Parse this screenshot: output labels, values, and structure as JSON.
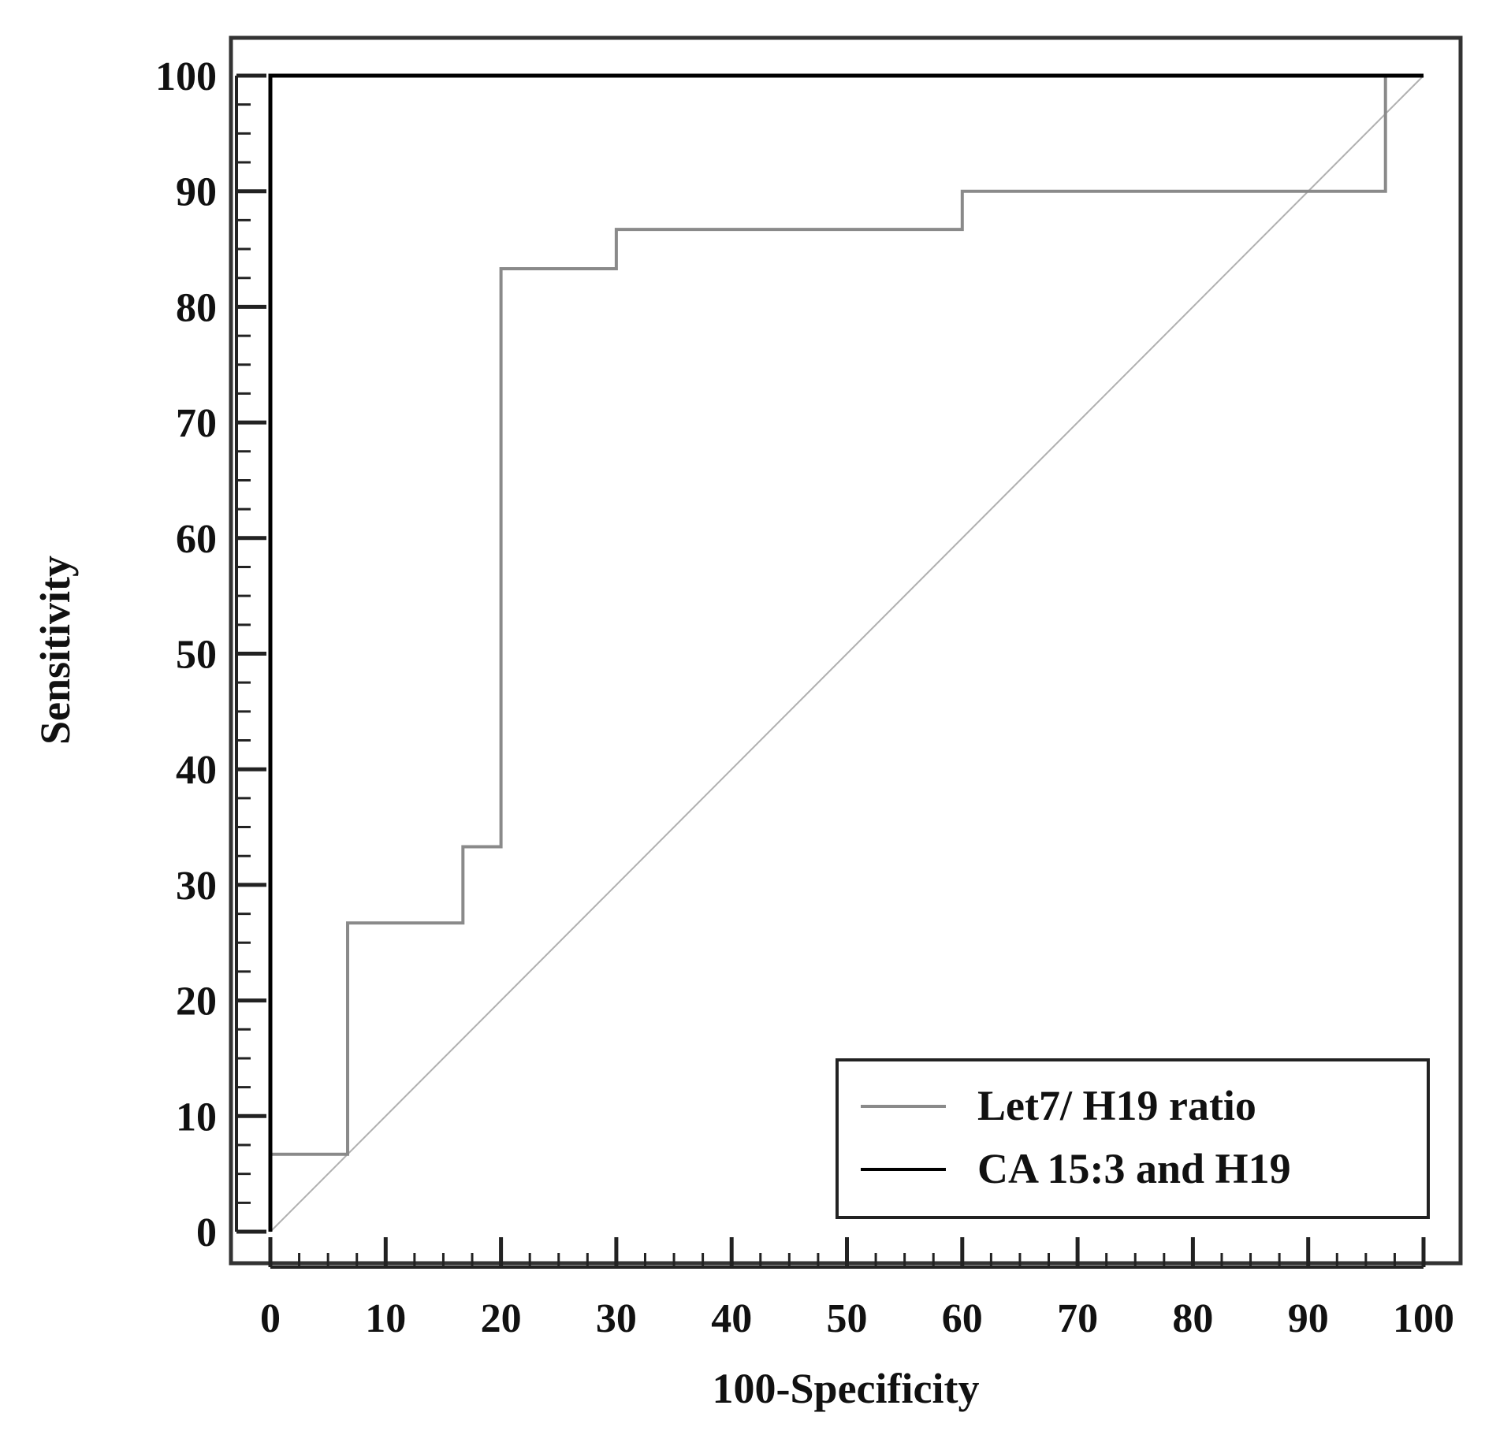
{
  "chart_data": {
    "type": "line",
    "title": "",
    "xlabel": "100-Specificity",
    "ylabel": "Sensitivity",
    "xlim": [
      0,
      100
    ],
    "ylim": [
      0,
      100
    ],
    "x_ticks": [
      0,
      10,
      20,
      30,
      40,
      50,
      60,
      70,
      80,
      90,
      100
    ],
    "y_ticks": [
      0,
      10,
      20,
      30,
      40,
      50,
      60,
      70,
      80,
      90,
      100
    ],
    "grid": false,
    "legend_position": "bottom-right",
    "series": [
      {
        "name": "Let7/ H19 ratio",
        "color": "#8a8a8a",
        "points": [
          [
            0,
            0
          ],
          [
            0,
            6.7
          ],
          [
            6.7,
            6.7
          ],
          [
            6.7,
            26.7
          ],
          [
            16.7,
            26.7
          ],
          [
            16.7,
            33.3
          ],
          [
            20,
            33.3
          ],
          [
            20,
            83.3
          ],
          [
            30,
            83.3
          ],
          [
            30,
            86.7
          ],
          [
            60,
            86.7
          ],
          [
            60,
            90
          ],
          [
            96.7,
            90
          ],
          [
            96.7,
            100
          ],
          [
            100,
            100
          ]
        ]
      },
      {
        "name": "CA 15:3 and H19",
        "color": "#000000",
        "points": [
          [
            0,
            0
          ],
          [
            0,
            100
          ],
          [
            100,
            100
          ]
        ]
      }
    ],
    "reference_line": {
      "color": "#b0b0b0",
      "points": [
        [
          0,
          0
        ],
        [
          100,
          100
        ]
      ]
    }
  }
}
